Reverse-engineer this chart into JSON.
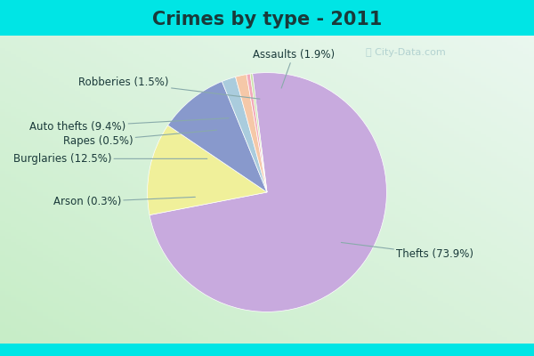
{
  "title": "Crimes by type - 2011",
  "slices": [
    {
      "label": "Thefts",
      "pct": 73.9,
      "color": "#C8AADE"
    },
    {
      "label": "Burglaries",
      "pct": 12.5,
      "color": "#F0F09A"
    },
    {
      "label": "Auto thefts",
      "pct": 9.4,
      "color": "#8899CC"
    },
    {
      "label": "Assaults",
      "pct": 1.9,
      "color": "#AACCDD"
    },
    {
      "label": "Robberies",
      "pct": 1.5,
      "color": "#F5C8A8"
    },
    {
      "label": "Rapes",
      "pct": 0.5,
      "color": "#F2AABB"
    },
    {
      "label": "Arson",
      "pct": 0.3,
      "color": "#C8E0A8"
    }
  ],
  "bg_cyan": "#00E5E5",
  "bg_green_light": "#C8E8C8",
  "bg_white": "#EEF8EE",
  "title_fontsize": 15,
  "label_fontsize": 8.5,
  "startangle": 97,
  "watermark": "ⓘ City-Data.com",
  "title_color": "#1A3A3A"
}
